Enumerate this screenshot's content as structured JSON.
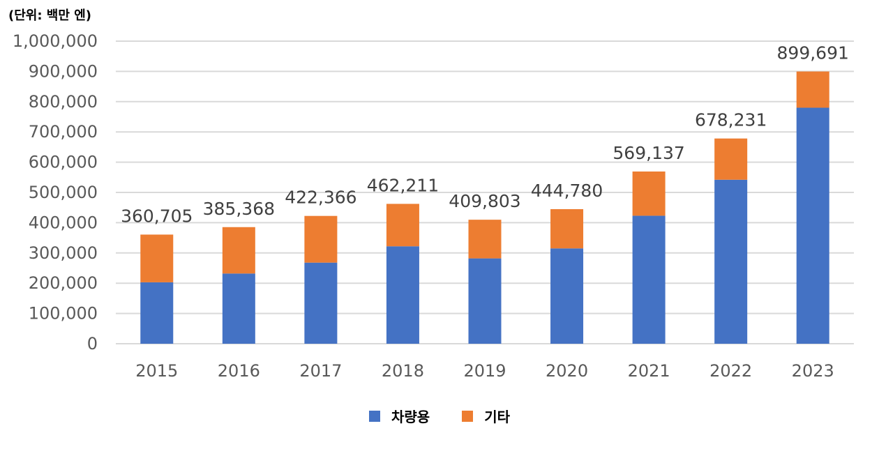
{
  "unit_label": "(단위: 백만 엔)",
  "colors": {
    "series1": "#4472C4",
    "series2": "#ED7D31",
    "grid": "#D9D9D9"
  },
  "chart_data": {
    "type": "bar",
    "stacked": true,
    "categories": [
      "2015",
      "2016",
      "2017",
      "2018",
      "2019",
      "2020",
      "2021",
      "2022",
      "2023"
    ],
    "series": [
      {
        "name": "차량용",
        "values": [
          203000,
          232000,
          268000,
          322000,
          282000,
          315000,
          423000,
          542000,
          780000
        ]
      },
      {
        "name": "기타",
        "values": [
          157705,
          153368,
          154366,
          140211,
          127803,
          129780,
          146137,
          136231,
          119691
        ]
      }
    ],
    "totals": [
      360705,
      385368,
      422366,
      462211,
      409803,
      444780,
      569137,
      678231,
      899691
    ],
    "total_labels": [
      "360,705",
      "385,368",
      "422,366",
      "462,211",
      "409,803",
      "444,780",
      "569,137",
      "678,231",
      "899,691"
    ],
    "yticks": [
      "0",
      "100,000",
      "200,000",
      "300,000",
      "400,000",
      "500,000",
      "600,000",
      "700,000",
      "800,000",
      "900,000",
      "1,000,000"
    ],
    "ylim": [
      0,
      1000000
    ],
    "grid": true,
    "legend_position": "bottom"
  },
  "legend": {
    "series1": "차량용",
    "series2": "기타"
  }
}
